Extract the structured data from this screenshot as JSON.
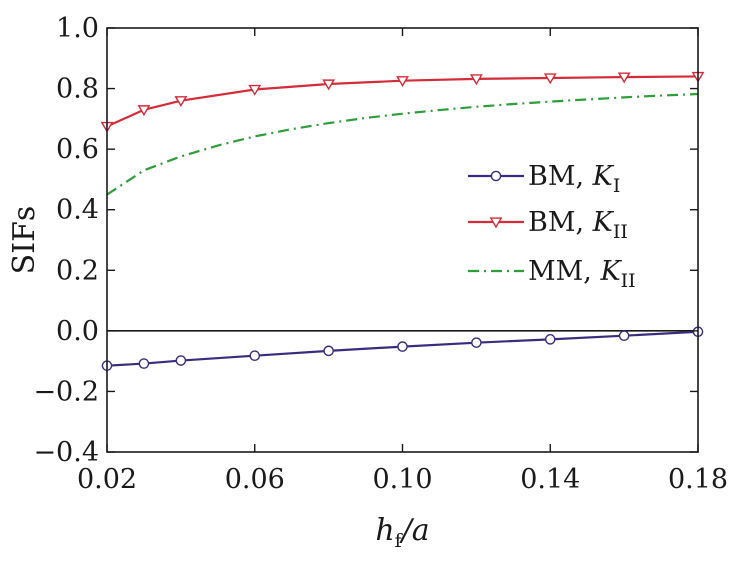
{
  "chart_data": {
    "type": "line",
    "xlabel": {
      "base": "h",
      "sub": "f",
      "rest": "/a"
    },
    "ylabel": "SIFs",
    "xlim": [
      0.02,
      0.18
    ],
    "ylim": [
      -0.4,
      1.0
    ],
    "x_ticks": [
      "0.02",
      "0.06",
      "0.10",
      "0.14",
      "0.18"
    ],
    "y_ticks": [
      "−0.4",
      "−0.2",
      "0.0",
      "0.2",
      "0.4",
      "0.6",
      "0.8",
      "1.0"
    ],
    "grid": false,
    "zero_line": true,
    "legend_position": "right-middle",
    "series": [
      {
        "id": "bm-k1",
        "name_prefix": "BM, ",
        "name_symbol": "K",
        "name_sub": "I",
        "color": "#3a2d7f",
        "dash": "solid",
        "marker": "circle",
        "x": [
          0.02,
          0.03,
          0.04,
          0.06,
          0.08,
          0.1,
          0.12,
          0.14,
          0.16,
          0.18
        ],
        "y": [
          -0.115,
          -0.108,
          -0.098,
          -0.082,
          -0.066,
          -0.052,
          -0.039,
          -0.028,
          -0.016,
          -0.003
        ]
      },
      {
        "id": "bm-k2",
        "name_prefix": "BM, ",
        "name_symbol": "K",
        "name_sub": "II",
        "color": "#d42c38",
        "dash": "solid",
        "marker": "triangle-down",
        "x": [
          0.02,
          0.03,
          0.04,
          0.06,
          0.08,
          0.1,
          0.12,
          0.14,
          0.16,
          0.18
        ],
        "y": [
          0.675,
          0.73,
          0.76,
          0.797,
          0.815,
          0.826,
          0.832,
          0.835,
          0.838,
          0.84
        ]
      },
      {
        "id": "mm-k2",
        "name_prefix": "MM, ",
        "name_symbol": "K",
        "name_sub": "II",
        "color": "#2e9d3a",
        "dash": "dashdot",
        "marker": "none",
        "x": [
          0.02,
          0.03,
          0.04,
          0.05,
          0.06,
          0.07,
          0.08,
          0.09,
          0.1,
          0.11,
          0.12,
          0.13,
          0.14,
          0.15,
          0.16,
          0.17,
          0.18
        ],
        "y": [
          0.45,
          0.53,
          0.576,
          0.612,
          0.642,
          0.666,
          0.686,
          0.703,
          0.717,
          0.729,
          0.74,
          0.749,
          0.757,
          0.764,
          0.771,
          0.777,
          0.782
        ]
      }
    ]
  }
}
